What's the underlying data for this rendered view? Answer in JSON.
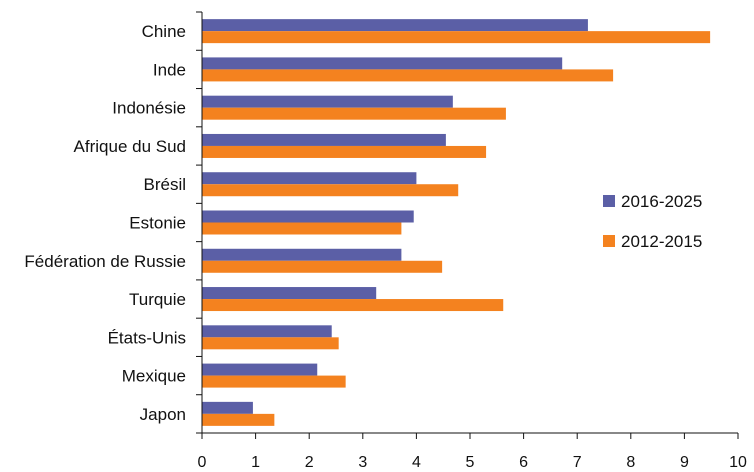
{
  "chart_data": {
    "type": "bar",
    "orientation": "horizontal",
    "categories": [
      "Chine",
      "Inde",
      "Indonésie",
      "Afrique du Sud",
      "Brésil",
      "Estonie",
      "Fédération de Russie",
      "Turquie",
      "États-Unis",
      "Mexique",
      "Japon"
    ],
    "series": [
      {
        "name": "2016-2025",
        "color": "#5b5fa6",
        "values": [
          7.2,
          6.72,
          4.68,
          4.55,
          4.0,
          3.95,
          3.72,
          3.25,
          2.42,
          2.15,
          0.95
        ]
      },
      {
        "name": "2012-2015",
        "color": "#f4821f",
        "values": [
          9.48,
          7.67,
          5.67,
          5.3,
          4.78,
          3.72,
          4.48,
          5.62,
          2.55,
          2.68,
          1.35
        ]
      }
    ],
    "xlim": [
      0,
      10
    ],
    "x_ticks": [
      "0",
      "1",
      "2",
      "3",
      "4",
      "5",
      "6",
      "7",
      "8",
      "9",
      "10"
    ],
    "xlabel": "",
    "ylabel": "",
    "title": "",
    "grid": false,
    "legend_position": "right"
  }
}
